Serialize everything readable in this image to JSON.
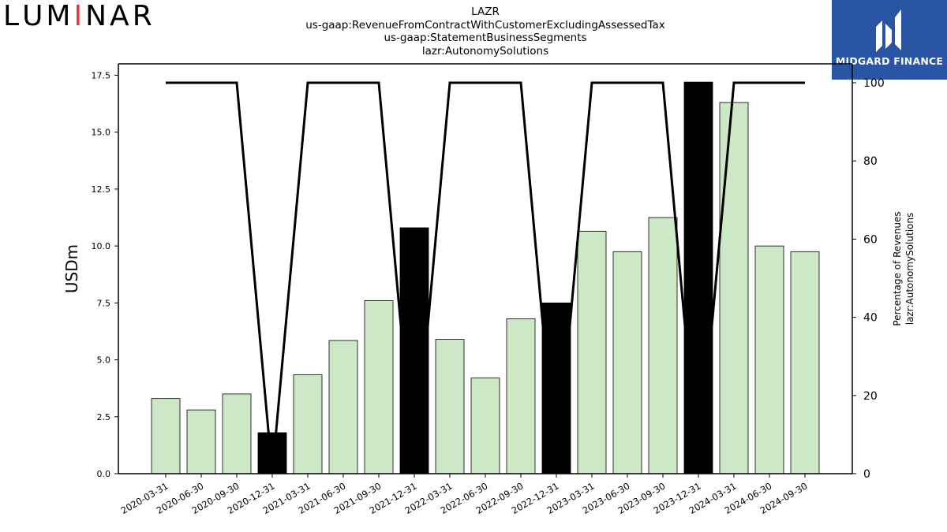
{
  "logo": {
    "left_text_letters": [
      "L",
      "U",
      "M",
      "I",
      "N",
      "A",
      "R"
    ],
    "left_letter_colors": [
      "#000000",
      "#000000",
      "#000000",
      "#e53935",
      "#000000",
      "#000000",
      "#000000"
    ],
    "bar_accents": [
      "#e53935",
      "#43a047",
      "#3b5bd6"
    ],
    "right_brand": "MIDGARD FINANCE",
    "right_bg": "#2a55a5"
  },
  "header": {
    "line1": "LAZR",
    "line2": "us-gaap:RevenueFromContractWithCustomerExcludingAssessedTax",
    "line3": "us-gaap:StatementBusinessSegments",
    "line4": "lazr:AutonomySolutions"
  },
  "chart_data": {
    "type": "bar",
    "categories": [
      "2020-03-31",
      "2020-06-30",
      "2020-09-30",
      "2020-12-31",
      "2021-03-31",
      "2021-06-30",
      "2021-09-30",
      "2021-12-31",
      "2022-03-31",
      "2022-06-30",
      "2022-09-30",
      "2022-12-31",
      "2023-03-31",
      "2023-06-30",
      "2023-09-30",
      "2023-12-31",
      "2024-03-31",
      "2024-06-30",
      "2024-09-30"
    ],
    "values": [
      3.3,
      2.8,
      3.5,
      1.8,
      4.35,
      5.85,
      7.6,
      10.8,
      5.9,
      4.2,
      6.8,
      7.5,
      10.65,
      9.75,
      11.25,
      17.2,
      16.3,
      10.0,
      9.75
    ],
    "highlight": [
      false,
      false,
      false,
      true,
      false,
      false,
      false,
      true,
      false,
      false,
      false,
      true,
      false,
      false,
      false,
      true,
      false,
      false,
      false
    ],
    "series": [
      {
        "values": [
          3.3,
          2.8,
          3.5,
          1.8,
          4.35,
          5.85,
          7.6,
          10.8,
          5.9,
          4.2,
          6.8,
          7.5,
          10.65,
          9.75,
          11.25,
          17.2,
          16.3,
          10.0,
          9.75
        ]
      },
      {
        "values": [
          100,
          100,
          100,
          0,
          100,
          100,
          100,
          0,
          100,
          100,
          100,
          0,
          100,
          100,
          100,
          0,
          100,
          100,
          100
        ]
      }
    ],
    "ylabel": "USDm",
    "ylabel_right_line1": "Percentage of Revenues",
    "ylabel_right_line2": "lazr:AutonomySolutions",
    "ylim": [
      0,
      18
    ],
    "ylim_right": [
      0,
      105
    ],
    "yticks": [
      "0.0",
      "2.5",
      "5.0",
      "7.5",
      "10.0",
      "12.5",
      "15.0",
      "17.5"
    ],
    "yticks_right": [
      "0",
      "20",
      "40",
      "60",
      "80",
      "100"
    ],
    "colors": {
      "bar": "#cde8c6",
      "bar_highlight": "#000000",
      "line": "#000000"
    },
    "grid": false
  }
}
